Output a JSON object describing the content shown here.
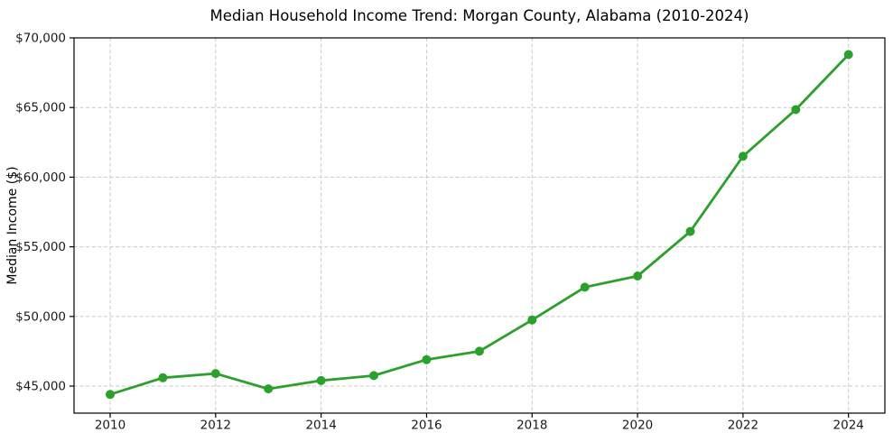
{
  "figure": {
    "background_color": "#ffffff"
  },
  "chart_data": {
    "type": "line",
    "title": "Median Household Income Trend: Morgan County, Alabama (2010-2024)",
    "xlabel": "",
    "ylabel": "Median Income ($)",
    "x": [
      2010,
      2011,
      2012,
      2013,
      2014,
      2015,
      2016,
      2017,
      2018,
      2019,
      2020,
      2021,
      2022,
      2023,
      2024
    ],
    "series": [
      {
        "name": "Median household income",
        "values": [
          44400,
          45600,
          45900,
          44800,
          45400,
          45750,
          46900,
          47500,
          49750,
          52100,
          52900,
          56100,
          61500,
          64850,
          68800
        ]
      }
    ],
    "x_ticks": {
      "values": [
        2010,
        2012,
        2014,
        2016,
        2018,
        2020,
        2022,
        2024
      ],
      "labels": [
        "2010",
        "2012",
        "2014",
        "2016",
        "2018",
        "2020",
        "2022",
        "2024"
      ]
    },
    "y_ticks": {
      "values": [
        45000,
        50000,
        55000,
        60000,
        65000,
        70000
      ],
      "labels": [
        "$45,000",
        "$50,000",
        "$55,000",
        "$60,000",
        "$65,000",
        "$70,000"
      ]
    },
    "xlim": [
      2009.315,
      2024.69
    ],
    "ylim": [
      43059,
      70000
    ],
    "legend": "none",
    "grid": {
      "visible": true,
      "style": "dashed",
      "color": "#c9c9c9"
    },
    "style": {
      "line_color": "#2ca02c",
      "marker": "circle",
      "marker_color": "#2ca02c",
      "axis_color": "#000000",
      "tick_label_color": "#1a1a1a"
    }
  }
}
